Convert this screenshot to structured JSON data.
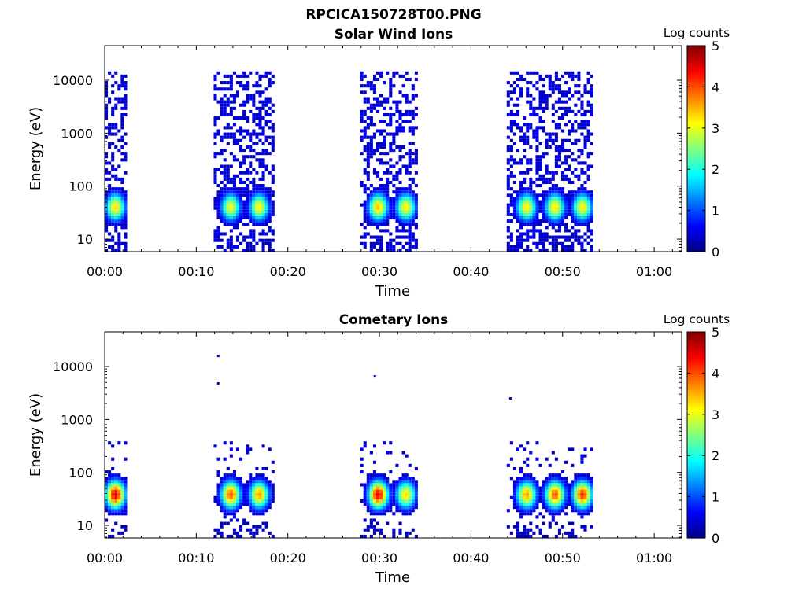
{
  "figure": {
    "title": "RPCICA150728T00.PNG"
  },
  "colorbar": {
    "label": "Log counts",
    "ticks": [
      "0",
      "1",
      "2",
      "3",
      "4",
      "5"
    ],
    "colors": [
      "#00008f",
      "#0000ff",
      "#0080ff",
      "#00ffff",
      "#80ff80",
      "#ffff00",
      "#ff8000",
      "#ff0000",
      "#800000"
    ]
  },
  "chart_data": [
    {
      "type": "heatmap",
      "title": "Solar Wind Ions",
      "xlabel": "Time",
      "ylabel": "Energy (eV)",
      "yscale": "log",
      "ylim": [
        5.8,
        45000
      ],
      "xlim_minutes": [
        0,
        63
      ],
      "x_ticks": [
        "00:00",
        "00:10",
        "00:20",
        "00:30",
        "00:40",
        "00:50",
        "01:00"
      ],
      "y_ticks": [
        "10",
        "100",
        "1000",
        "10000"
      ],
      "clim": [
        0,
        5
      ],
      "active_intervals_minutes": [
        [
          0.0,
          2.2
        ],
        [
          11.9,
          18.3
        ],
        [
          27.9,
          34.2
        ],
        [
          43.9,
          53.3
        ]
      ],
      "peak_energy_eV": 40,
      "peaks": [
        {
          "t": 1.0,
          "log_counts": 3.3
        },
        {
          "t": 13.6,
          "log_counts": 3.1
        },
        {
          "t": 16.7,
          "log_counts": 3.2
        },
        {
          "t": 29.7,
          "log_counts": 3.4
        },
        {
          "t": 32.7,
          "log_counts": 3.2
        },
        {
          "t": 45.9,
          "log_counts": 3.2
        },
        {
          "t": 49.0,
          "log_counts": 3.3
        },
        {
          "t": 52.0,
          "log_counts": 3.2
        }
      ],
      "background_log_counts": 0.3,
      "background_max_energy_eV": 15000
    },
    {
      "type": "heatmap",
      "title": "Cometary Ions",
      "xlabel": "Time",
      "ylabel": "Energy (eV)",
      "yscale": "log",
      "ylim": [
        5.8,
        45000
      ],
      "xlim_minutes": [
        0,
        63
      ],
      "x_ticks": [
        "00:00",
        "00:10",
        "00:20",
        "00:30",
        "00:40",
        "00:50",
        "01:00"
      ],
      "y_ticks": [
        "10",
        "100",
        "1000",
        "10000"
      ],
      "clim": [
        0,
        5
      ],
      "active_intervals_minutes": [
        [
          0.0,
          2.2
        ],
        [
          11.9,
          18.3
        ],
        [
          27.9,
          34.2
        ],
        [
          43.9,
          53.3
        ]
      ],
      "peak_energy_eV": 38,
      "peaks": [
        {
          "t": 1.0,
          "log_counts": 4.6
        },
        {
          "t": 13.6,
          "log_counts": 4.0
        },
        {
          "t": 16.7,
          "log_counts": 3.6
        },
        {
          "t": 29.7,
          "log_counts": 4.5
        },
        {
          "t": 32.7,
          "log_counts": 3.3
        },
        {
          "t": 45.9,
          "log_counts": 3.6
        },
        {
          "t": 49.0,
          "log_counts": 4.0
        },
        {
          "t": 52.0,
          "log_counts": 4.2
        }
      ],
      "isolated_points": [
        {
          "t": 12.4,
          "energy_eV": 15800
        },
        {
          "t": 12.4,
          "energy_eV": 4800
        },
        {
          "t": 29.5,
          "energy_eV": 6500
        },
        {
          "t": 44.3,
          "energy_eV": 2500
        }
      ]
    }
  ]
}
